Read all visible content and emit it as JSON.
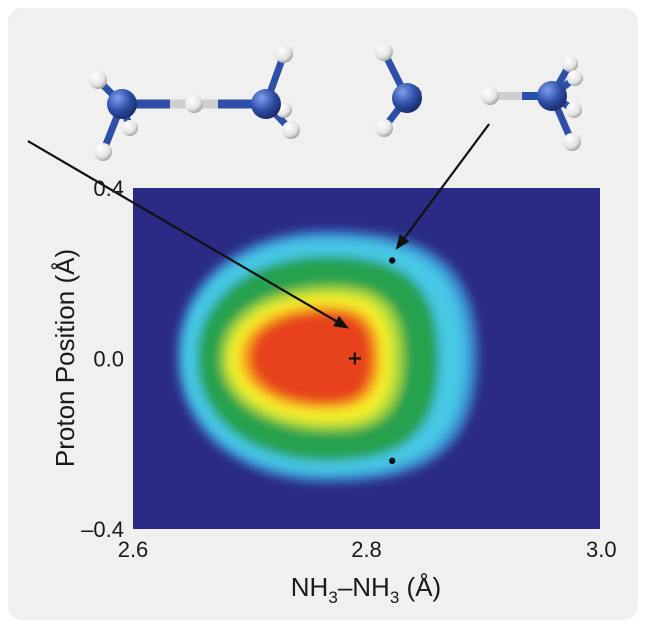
{
  "colors": {
    "panel_bg": "#f0f0ef",
    "plot_bg": "#2b2a84",
    "nitrogen": "#2e4fa8",
    "hydrogen": "#e6e6e6",
    "bond_nh": "#2e4fa8",
    "arrow": "#111111"
  },
  "chart_data": {
    "type": "heatmap",
    "xlabel": "NH3–NH3 (Å)",
    "xlabel_parts": {
      "base": "NH",
      "sub": "3",
      "dash": "–",
      "base2": "NH",
      "sub2": "3",
      "unit": " (Å)"
    },
    "ylabel": "Proton Position (Å)",
    "xlim": [
      2.6,
      3.0
    ],
    "ylim": [
      -0.4,
      0.4
    ],
    "xticks": [
      {
        "value": 2.6,
        "label": "2.6"
      },
      {
        "value": 2.8,
        "label": "2.8"
      },
      {
        "value": 3.0,
        "label": "3.0"
      }
    ],
    "yticks": [
      {
        "value": 0.4,
        "label": "0.4"
      },
      {
        "value": 0.0,
        "label": "0.0"
      },
      {
        "value": -0.4,
        "label": "–0.4"
      }
    ],
    "contour_levels": [
      {
        "color": "#3a8fd2",
        "xmin": 2.638,
        "xmax": 2.895,
        "ymin": -0.29,
        "ymax": 0.3,
        "cx": 2.765
      },
      {
        "color": "#46c8e6",
        "xmin": 2.642,
        "xmax": 2.885,
        "ymin": -0.27,
        "ymax": 0.28,
        "cx": 2.765
      },
      {
        "color": "#27a14d",
        "xmin": 2.655,
        "xmax": 2.862,
        "ymin": -0.24,
        "ymax": 0.24,
        "cx": 2.765
      },
      {
        "color": "#a9d93b",
        "xmin": 2.675,
        "xmax": 2.832,
        "ymin": -0.17,
        "ymax": 0.17,
        "cx": 2.77
      },
      {
        "color": "#f6ef2c",
        "xmin": 2.682,
        "xmax": 2.822,
        "ymin": -0.15,
        "ymax": 0.15,
        "cx": 2.77
      },
      {
        "color": "#f5a21c",
        "xmin": 2.692,
        "xmax": 2.812,
        "ymin": -0.12,
        "ymax": 0.125,
        "cx": 2.765
      },
      {
        "color": "#e8431a",
        "xmin": 2.7,
        "xmax": 2.805,
        "ymin": -0.105,
        "ymax": 0.11,
        "cx": 2.765
      }
    ],
    "points": [
      {
        "name": "maximum",
        "marker": "plus",
        "x": 2.79,
        "y": 0.0
      },
      {
        "name": "upper-minimum",
        "marker": "dot",
        "x": 2.822,
        "y": 0.23
      },
      {
        "name": "lower-minimum",
        "marker": "dot",
        "x": 2.822,
        "y": -0.24
      }
    ],
    "arrows": [
      {
        "name": "arrow-symmetric-structure",
        "from_x": 2.51,
        "from_y": 0.51,
        "to_x": 2.785,
        "to_y": 0.07
      },
      {
        "name": "arrow-asymmetric-structure",
        "from_x": 2.905,
        "from_y": 0.55,
        "to_x": 2.825,
        "to_y": 0.255
      }
    ]
  }
}
